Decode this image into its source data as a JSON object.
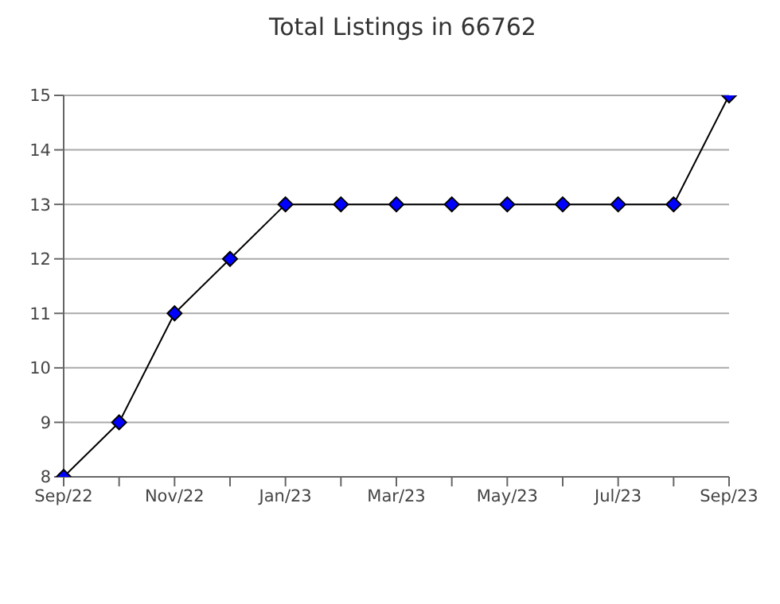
{
  "chart_data": {
    "type": "line",
    "title": "Total Listings in 66762",
    "categories": [
      "Sep/22",
      null,
      "Nov/22",
      null,
      "Jan/23",
      null,
      "Mar/23",
      null,
      "May/23",
      null,
      "Jul/23",
      null,
      "Sep/23"
    ],
    "series": [
      {
        "color": "#0000ff",
        "values": [
          8,
          9,
          11,
          12,
          13,
          13,
          13,
          13,
          13,
          13,
          13,
          13,
          15
        ]
      }
    ],
    "ylim": [
      8,
      15
    ],
    "yticks": [
      8,
      9,
      10,
      11,
      12,
      13,
      14,
      15
    ],
    "grid": "y",
    "marker": "diamond",
    "line_style": "solid",
    "legend": false
  }
}
